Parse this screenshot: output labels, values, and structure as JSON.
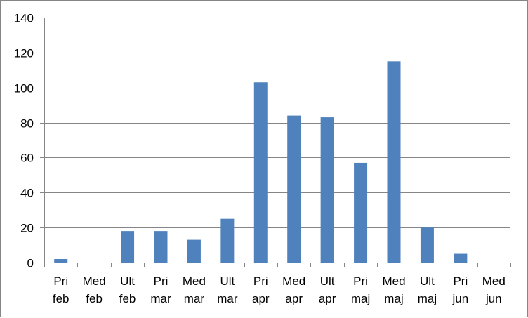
{
  "chart_data": {
    "type": "bar",
    "categories": [
      [
        "Pri",
        "feb"
      ],
      [
        "Med",
        "feb"
      ],
      [
        "Ult",
        "feb"
      ],
      [
        "Pri",
        "mar"
      ],
      [
        "Med",
        "mar"
      ],
      [
        "Ult",
        "mar"
      ],
      [
        "Pri",
        "apr"
      ],
      [
        "Med",
        "apr"
      ],
      [
        "Ult",
        "apr"
      ],
      [
        "Pri",
        "maj"
      ],
      [
        "Med",
        "maj"
      ],
      [
        "Ult",
        "maj"
      ],
      [
        "Pri",
        "jun"
      ],
      [
        "Med",
        "jun"
      ]
    ],
    "values": [
      2,
      0,
      18,
      18,
      13,
      25,
      103,
      84,
      83,
      57,
      115,
      20,
      5,
      0
    ],
    "y_ticks": [
      "0",
      "20",
      "40",
      "60",
      "80",
      "100",
      "120",
      "140"
    ],
    "ylim": [
      0,
      140
    ],
    "grid": true,
    "legend": "none",
    "colors": {
      "bar": "#4f81bd",
      "grid": "#868686",
      "axis": "#868686",
      "border": "#868686"
    }
  }
}
